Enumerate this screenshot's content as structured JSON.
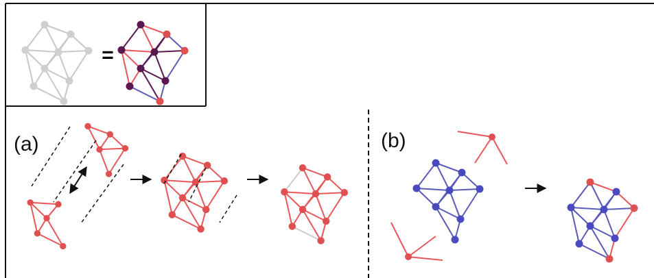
{
  "inset": {
    "equals": "="
  },
  "panels": [
    {
      "label": "(a)"
    },
    {
      "label": "(b)"
    }
  ]
}
